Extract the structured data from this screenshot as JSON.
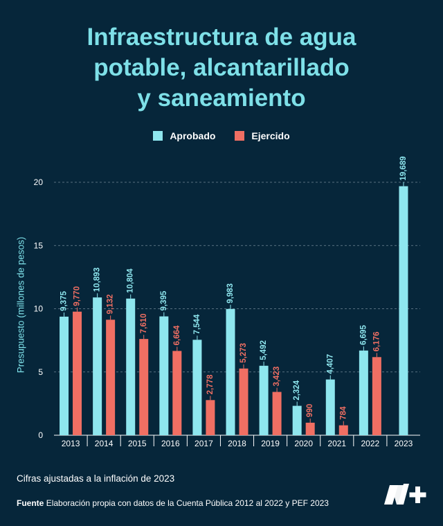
{
  "title_lines": [
    "Infraestructura de agua",
    "potable, alcantarillado",
    "y saneamiento"
  ],
  "colors": {
    "background": "#06263a",
    "aprobado": "#8ee6ee",
    "ejercido": "#f06f63",
    "title": "#7ee0e8"
  },
  "chart_data": {
    "type": "bar",
    "title": "Infraestructura de agua potable, alcantarillado y saneamiento",
    "xlabel": "",
    "ylabel": "Presupuesto (millones de pesos)",
    "ylim": [
      0,
      20
    ],
    "yticks": [
      0,
      5,
      10,
      15,
      20
    ],
    "grid": true,
    "legend_position": "top-center",
    "categories": [
      "2013",
      "2014",
      "2015",
      "2016",
      "2017",
      "2018",
      "2019",
      "2020",
      "2021",
      "2022",
      "2023"
    ],
    "series": [
      {
        "name": "Aprobado",
        "values": [
          9.375,
          10.893,
          10.804,
          9.395,
          7.544,
          9.983,
          5.492,
          2.324,
          4.407,
          6.695,
          19.689
        ],
        "labels": [
          "9,375",
          "10,893",
          "10,804",
          "9,395",
          "7,544",
          "9,983",
          "5,492",
          "2,324",
          "4,407",
          "6,695",
          "19,689"
        ]
      },
      {
        "name": "Ejercido",
        "values": [
          9.77,
          9.132,
          7.61,
          6.664,
          2.778,
          5.273,
          3.423,
          0.99,
          0.784,
          6.176,
          null
        ],
        "labels": [
          "9,770",
          "9,132",
          "7,610",
          "6,664",
          "2,778",
          "5,273",
          "3,423",
          "990",
          "784",
          "6,176",
          null
        ]
      }
    ]
  },
  "footer": {
    "note": "Cifras ajustadas a la inflación de 2023",
    "source_label": "Fuente",
    "source_text": "Elaboración propia con datos de la Cuenta Pública 2012 al 2022 y PEF 2023"
  },
  "logo_icon": "nmas-logo-icon"
}
